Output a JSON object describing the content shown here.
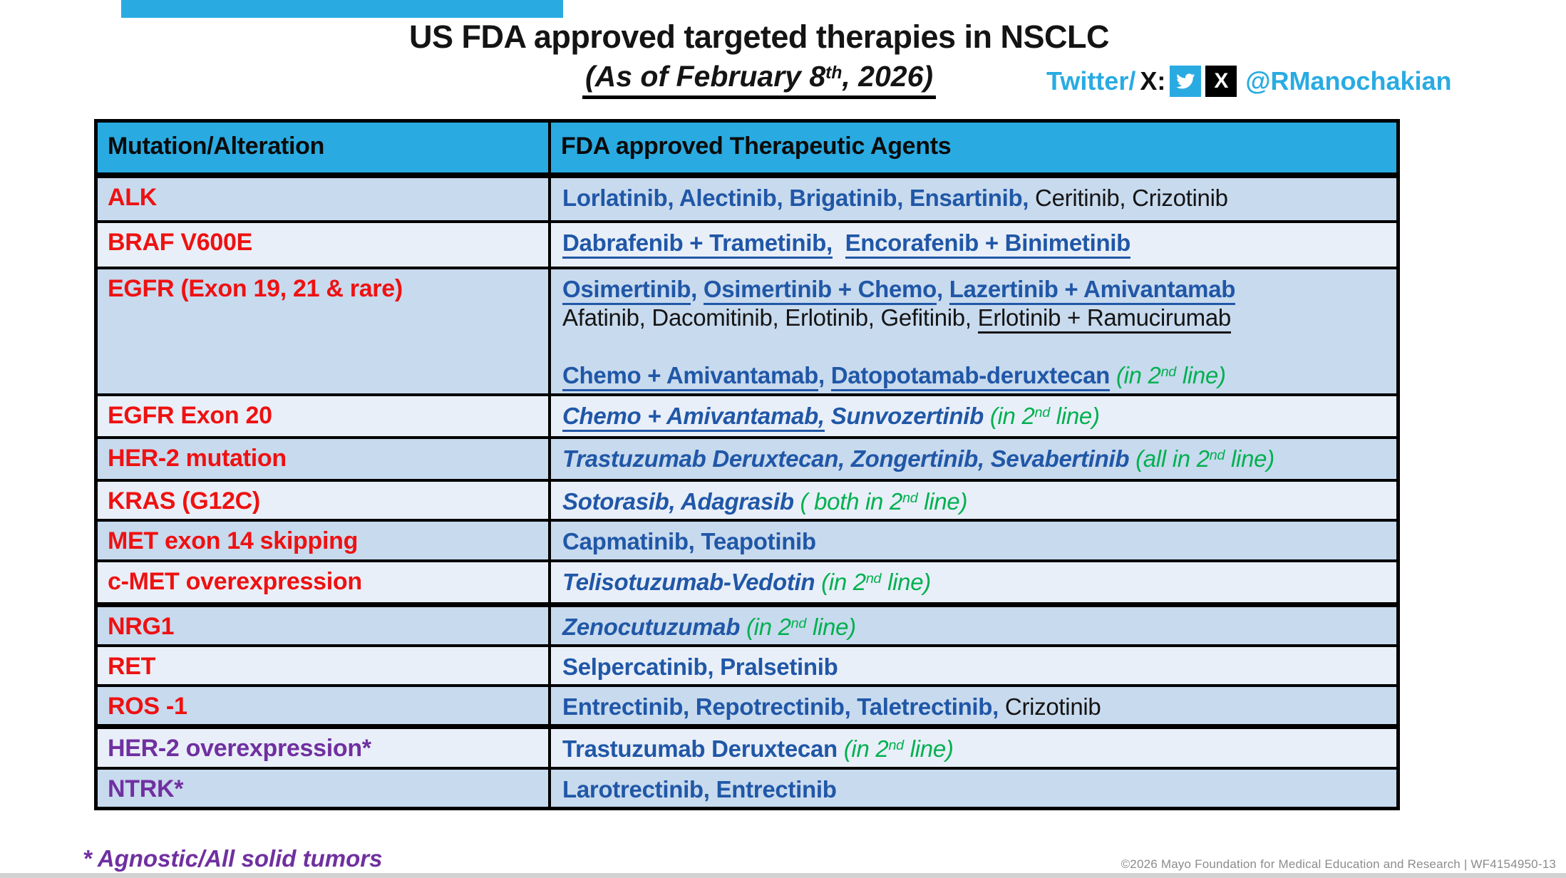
{
  "palette": {
    "accent_blue": "#29ABE2",
    "row_dark": "#C8DAEE",
    "row_light": "#E9EFF8",
    "ink": "#141414",
    "red": "#EE1111",
    "blue": "#2057A7",
    "green": "#00B050",
    "purple": "#7030A0",
    "cyan_text": "#29ABE2",
    "gray": "#8C8C8C"
  },
  "header": {
    "title": "US FDA approved targeted therapies in NSCLC",
    "subtitle": {
      "pre": "(As of February 8",
      "sup": "th",
      "post": ", 2026)"
    },
    "social": {
      "label_cyan": "Twitter/",
      "label_black": "X:",
      "handle": "@RManochakian",
      "icons": [
        "twitter-bird-icon",
        "x-logo-icon"
      ]
    }
  },
  "table": {
    "columns": [
      "Mutation/Alteration",
      "FDA approved Therapeutic Agents"
    ],
    "rows": [
      {
        "mutation": {
          "t": "ALK",
          "c": "red"
        },
        "shade": "dark",
        "lines": [
          [
            {
              "t": "Lorlatinib, Alectinib, Brigatinib, Ensartinib,",
              "c": "blue",
              "b": true
            },
            {
              "t": " Ceritinib, Crizotinib",
              "c": "black"
            }
          ]
        ]
      },
      {
        "mutation": {
          "t": "BRAF V600E",
          "c": "red"
        },
        "shade": "light",
        "lines": [
          [
            {
              "t": "Dabrafenib + Trametinib,",
              "c": "blue",
              "b": true,
              "u": true
            },
            {
              "t": "  ",
              "c": "blue"
            },
            {
              "t": "Encorafenib + Binimetinib",
              "c": "blue",
              "b": true,
              "u": true
            }
          ]
        ]
      },
      {
        "mutation": {
          "t": "EGFR (Exon 19, 21 & rare)",
          "c": "red"
        },
        "shade": "dark",
        "lines": [
          [
            {
              "t": "Osimertinib",
              "c": "blue",
              "b": true,
              "u": true
            },
            {
              "t": ", ",
              "c": "blue",
              "b": true
            },
            {
              "t": "Osimertinib + Chemo",
              "c": "blue",
              "b": true,
              "u": true
            },
            {
              "t": ", ",
              "c": "blue",
              "b": true
            },
            {
              "t": "Lazertinib + Amivantamab",
              "c": "blue",
              "b": true,
              "u": true
            }
          ],
          [
            {
              "t": "Afatinib, Dacomitinib, Erlotinib, Gefitinib, ",
              "c": "black"
            },
            {
              "t": "Erlotinib + Ramucirumab",
              "c": "black",
              "u": true
            }
          ],
          [],
          [
            {
              "t": "Chemo + Amivantamab",
              "c": "blue",
              "b": true,
              "u": true
            },
            {
              "t": ", ",
              "c": "blue",
              "b": true
            },
            {
              "t": "Datopotamab-deruxtecan",
              "c": "blue",
              "b": true,
              "u": true
            },
            {
              "t": " ",
              "c": "blue"
            },
            {
              "t": "(in 2",
              "c": "green",
              "i": true
            },
            {
              "t": "nd",
              "c": "green",
              "i": true,
              "sup": true
            },
            {
              "t": " line)",
              "c": "green",
              "i": true
            }
          ]
        ]
      },
      {
        "mutation": {
          "t": "EGFR Exon 20",
          "c": "red"
        },
        "shade": "light",
        "lines": [
          [
            {
              "t": "Chemo + Amivantamab,",
              "c": "blue",
              "b": true,
              "i": true,
              "u": true
            },
            {
              "t": " Sunvozertinib ",
              "c": "blue",
              "b": true,
              "i": true
            },
            {
              "t": "(in 2",
              "c": "green",
              "i": true
            },
            {
              "t": "nd",
              "c": "green",
              "i": true,
              "sup": true
            },
            {
              "t": " line)",
              "c": "green",
              "i": true
            }
          ]
        ]
      },
      {
        "mutation": {
          "t": "HER-2 mutation",
          "c": "red"
        },
        "shade": "dark",
        "lines": [
          [
            {
              "t": "Trastuzumab Deruxtecan, Zongertinib, Sevabertinib ",
              "c": "blue",
              "b": true,
              "i": true
            },
            {
              "t": "(all in 2",
              "c": "green",
              "i": true
            },
            {
              "t": "nd",
              "c": "green",
              "i": true,
              "sup": true
            },
            {
              "t": " line)",
              "c": "green",
              "i": true
            }
          ]
        ]
      },
      {
        "mutation": {
          "t": "KRAS (G12C)",
          "c": "red"
        },
        "shade": "light",
        "lines": [
          [
            {
              "t": "Sotorasib, Adagrasib ",
              "c": "blue",
              "b": true,
              "i": true
            },
            {
              "t": "( both in 2",
              "c": "green",
              "i": true
            },
            {
              "t": "nd",
              "c": "green",
              "i": true,
              "sup": true
            },
            {
              "t": " line)",
              "c": "green",
              "i": true
            }
          ]
        ]
      },
      {
        "mutation": {
          "t": "MET exon 14 skipping",
          "c": "red"
        },
        "shade": "dark",
        "lines": [
          [
            {
              "t": "Capmatinib, Teapotinib",
              "c": "blue",
              "b": true
            }
          ]
        ]
      },
      {
        "mutation": {
          "t": "c-MET overexpression",
          "c": "red"
        },
        "shade": "light",
        "lines": [
          [
            {
              "t": "Telisotuzumab-Vedotin ",
              "c": "blue",
              "b": true,
              "i": true
            },
            {
              "t": "(in 2",
              "c": "green",
              "i": true
            },
            {
              "t": "nd",
              "c": "green",
              "i": true,
              "sup": true
            },
            {
              "t": " line)",
              "c": "green",
              "i": true
            }
          ]
        ]
      },
      {
        "mutation": {
          "t": "NRG1",
          "c": "red"
        },
        "shade": "dark",
        "thick_top": true,
        "lines": [
          [
            {
              "t": "Zenocutuzumab ",
              "c": "blue",
              "b": true,
              "i": true
            },
            {
              "t": "(in 2",
              "c": "green",
              "i": true
            },
            {
              "t": "nd",
              "c": "green",
              "i": true,
              "sup": true
            },
            {
              "t": " line)",
              "c": "green",
              "i": true
            }
          ]
        ]
      },
      {
        "mutation": {
          "t": "RET",
          "c": "red"
        },
        "shade": "light",
        "lines": [
          [
            {
              "t": "Selpercatinib, Pralsetinib",
              "c": "blue",
              "b": true
            }
          ]
        ]
      },
      {
        "mutation": {
          "t": "ROS -1",
          "c": "red"
        },
        "shade": "dark",
        "lines": [
          [
            {
              "t": "Entrectinib, Repotrectinib, Taletrectinib,",
              "c": "blue",
              "b": true
            },
            {
              "t": " Crizotinib",
              "c": "black"
            }
          ]
        ]
      },
      {
        "mutation": {
          "t": "HER-2 overexpression*",
          "c": "purple",
          "i": true
        },
        "shade": "light",
        "thick_top": true,
        "lines": [
          [
            {
              "t": "Trastuzumab Deruxtecan ",
              "c": "blue",
              "b": true
            },
            {
              "t": "(in 2",
              "c": "green",
              "i": true
            },
            {
              "t": "nd",
              "c": "green",
              "i": true,
              "sup": true
            },
            {
              "t": " line)",
              "c": "green",
              "i": true
            }
          ]
        ]
      },
      {
        "mutation": {
          "t": "NTRK*",
          "c": "purple",
          "i": true
        },
        "shade": "dark",
        "lines": [
          [
            {
              "t": "Larotrectinib, Entrectinib",
              "c": "blue",
              "b": true
            }
          ]
        ]
      }
    ]
  },
  "footer": {
    "note": "* Agnostic/All solid tumors",
    "copyright": "©2026 Mayo Foundation for Medical Education and Research  |  WF4154950-13"
  }
}
